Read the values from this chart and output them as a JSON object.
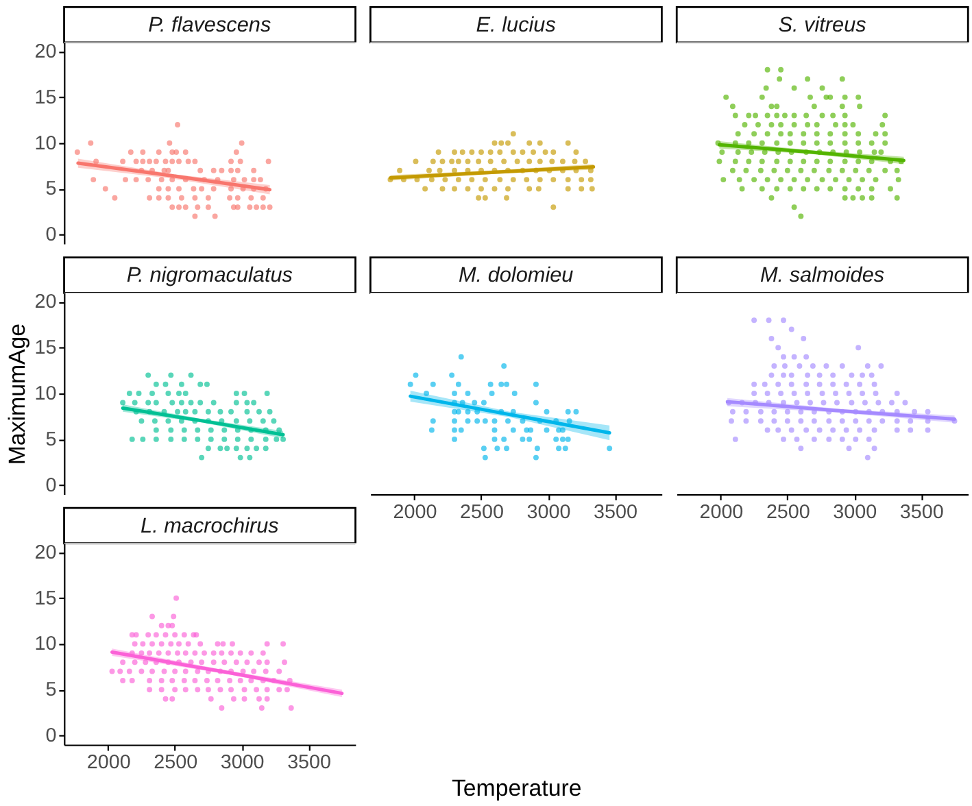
{
  "chart_data": [
    {
      "type": "scatter",
      "title": "P. flavescens",
      "xlim": [
        1670,
        3850
      ],
      "ylim": [
        -1,
        21
      ],
      "yticks": [
        0,
        5,
        10,
        15,
        20
      ],
      "tick_labels": "y",
      "series": [
        {
          "marker": "circle",
          "color": "#F8766D",
          "x": [
            2520,
            1870,
            2460,
            3000,
            1770,
            2170,
            2260,
            2380,
            2480,
            2510,
            2580,
            2960,
            1910,
            2110,
            2210,
            2260,
            2310,
            2360,
            2430,
            2480,
            2530,
            2600,
            2650,
            2920,
            2990,
            3200,
            2250,
            2330,
            2420,
            2450,
            2690,
            2790,
            2850,
            2920,
            2970,
            3090,
            1890,
            2130,
            2210,
            2300,
            2400,
            2480,
            2580,
            2720,
            2820,
            2940,
            3020,
            3090,
            3140,
            1980,
            2380,
            2450,
            2530,
            2640,
            2700,
            2790,
            2920,
            3010,
            3090,
            3180,
            2050,
            2310,
            2380,
            2450,
            2550,
            2650,
            2750,
            2910,
            2970,
            3070,
            3160,
            2480,
            2530,
            2580,
            2670,
            2750,
            2940,
            2970,
            3060,
            3110,
            3160,
            3210,
            2650,
            2800
          ],
          "values": [
            12,
            10,
            10,
            10,
            9,
            9,
            9,
            9,
            9,
            9,
            9,
            9,
            8,
            8,
            8,
            8,
            8,
            8,
            8,
            8,
            8,
            8,
            8,
            8,
            8,
            8,
            7,
            7,
            7,
            7,
            7,
            7,
            7,
            7,
            7,
            7,
            6,
            6,
            6,
            6,
            6,
            6,
            6,
            6,
            6,
            6,
            6,
            6,
            6,
            5,
            5,
            5,
            5,
            5,
            5,
            5,
            5,
            5,
            5,
            5,
            4,
            4,
            4,
            4,
            4,
            4,
            4,
            4,
            4,
            4,
            4,
            3,
            3,
            3,
            3,
            3,
            3,
            3,
            3,
            3,
            3,
            3,
            2,
            2
          ]
        },
        {
          "type": "line",
          "color": "#F8766D",
          "x": [
            1775,
            2490,
            3210
          ],
          "values": [
            7.8,
            6.4,
            4.9
          ],
          "lower": [
            7.3,
            6.1,
            4.4
          ],
          "upper": [
            8.3,
            6.6,
            5.4
          ]
        }
      ]
    },
    {
      "type": "scatter",
      "title": "E. lucius",
      "xlim": [
        1670,
        3850
      ],
      "ylim": [
        -1,
        21
      ],
      "tick_labels": false,
      "series": [
        {
          "marker": "circle",
          "color": "#C49A00",
          "x": [
            2740,
            2600,
            2650,
            2700,
            2860,
            2940,
            3150,
            2180,
            2300,
            2360,
            2430,
            2500,
            2570,
            2640,
            2740,
            2810,
            2890,
            2980,
            3040,
            3210,
            2010,
            2140,
            2210,
            2280,
            2330,
            2400,
            2480,
            2570,
            2670,
            2770,
            2860,
            2940,
            3030,
            3110,
            3200,
            3280,
            1890,
            2110,
            2190,
            2300,
            2400,
            2500,
            2600,
            2700,
            2810,
            2910,
            3010,
            3110,
            3210,
            3320,
            1820,
            1920,
            2020,
            2130,
            2230,
            2330,
            2430,
            2530,
            2640,
            2740,
            2840,
            2940,
            3040,
            3150,
            3250,
            3320,
            2080,
            2210,
            2300,
            2400,
            2500,
            2600,
            2700,
            2860,
            2930,
            3150,
            3250,
            3330,
            2480,
            2530,
            2690,
            3040
          ],
          "values": [
            11,
            10,
            10,
            10,
            10,
            10,
            10,
            9,
            9,
            9,
            9,
            9,
            9,
            9,
            9,
            9,
            9,
            9,
            9,
            9,
            8,
            8,
            8,
            8,
            8,
            8,
            8,
            8,
            8,
            8,
            8,
            8,
            8,
            8,
            8,
            8,
            7,
            7,
            7,
            7,
            7,
            7,
            7,
            7,
            7,
            7,
            7,
            7,
            7,
            7,
            6,
            6,
            6,
            6,
            6,
            6,
            6,
            6,
            6,
            6,
            6,
            6,
            6,
            6,
            6,
            6,
            5,
            5,
            5,
            5,
            5,
            5,
            5,
            5,
            5,
            5,
            5,
            5,
            4,
            4,
            4,
            3
          ]
        },
        {
          "type": "line",
          "color": "#C49A00",
          "x": [
            1820,
            2580,
            3340
          ],
          "values": [
            6.2,
            6.8,
            7.4
          ],
          "lower": [
            5.9,
            6.6,
            7.1
          ],
          "upper": [
            6.5,
            7.0,
            7.7
          ]
        }
      ]
    },
    {
      "type": "scatter",
      "title": "S. vitreus",
      "xlim": [
        1670,
        3850
      ],
      "ylim": [
        -1,
        21
      ],
      "tick_labels": false,
      "series": [
        {
          "marker": "circle",
          "color": "#53B400",
          "x": [
            2350,
            2450,
            2440,
            2650,
            2910,
            2340,
            2550,
            2760,
            2040,
            2310,
            2670,
            2790,
            2820,
            2930,
            3030,
            2090,
            2380,
            2420,
            2700,
            2910,
            3040,
            2110,
            2210,
            2260,
            2350,
            2420,
            2480,
            2550,
            2640,
            2760,
            2840,
            2930,
            3230,
            2180,
            2280,
            2380,
            2450,
            2550,
            2650,
            2720,
            2860,
            2930,
            2990,
            3210,
            2130,
            2250,
            2350,
            2450,
            2520,
            2620,
            2720,
            2820,
            2930,
            3030,
            3160,
            3230,
            1980,
            2110,
            2210,
            2310,
            2420,
            2520,
            2620,
            2720,
            2820,
            2930,
            3030,
            3130,
            3230,
            2010,
            2130,
            2230,
            2330,
            2430,
            2530,
            2640,
            2740,
            2840,
            2940,
            3040,
            3150,
            3200,
            1990,
            2110,
            2210,
            2310,
            2420,
            2520,
            2620,
            2720,
            2820,
            2930,
            3030,
            3130,
            3270,
            3350,
            2090,
            2190,
            2300,
            2400,
            2500,
            2600,
            2700,
            2810,
            2910,
            3010,
            3110,
            3230,
            3320,
            2020,
            2140,
            2250,
            2350,
            2450,
            2550,
            2650,
            2760,
            2860,
            2960,
            3060,
            3160,
            3330,
            2160,
            2310,
            2420,
            2520,
            2620,
            2720,
            2820,
            2930,
            3030,
            3130,
            3270,
            2380,
            2930,
            2990,
            3060,
            3130,
            3320,
            2550,
            2600
          ],
          "values": [
            18,
            18,
            17,
            17,
            17,
            16,
            16,
            16,
            15,
            15,
            15,
            15,
            15,
            15,
            15,
            14,
            14,
            14,
            14,
            14,
            14,
            13,
            13,
            13,
            13,
            13,
            13,
            13,
            13,
            13,
            13,
            13,
            13,
            12,
            12,
            12,
            12,
            12,
            12,
            12,
            12,
            12,
            12,
            12,
            11,
            11,
            11,
            11,
            11,
            11,
            11,
            11,
            11,
            11,
            11,
            11,
            10,
            10,
            10,
            10,
            10,
            10,
            10,
            10,
            10,
            10,
            10,
            10,
            10,
            9,
            9,
            9,
            9,
            9,
            9,
            9,
            9,
            9,
            9,
            9,
            9,
            9,
            8,
            8,
            8,
            8,
            8,
            8,
            8,
            8,
            8,
            8,
            8,
            8,
            8,
            8,
            7,
            7,
            7,
            7,
            7,
            7,
            7,
            7,
            7,
            7,
            7,
            7,
            7,
            6,
            6,
            6,
            6,
            6,
            6,
            6,
            6,
            6,
            6,
            6,
            6,
            6,
            5,
            5,
            5,
            5,
            5,
            5,
            5,
            5,
            5,
            5,
            5,
            4,
            4,
            4,
            4,
            4,
            4,
            3,
            2
          ]
        },
        {
          "type": "line",
          "color": "#53B400",
          "x": [
            1990,
            2680,
            3370
          ],
          "values": [
            9.8,
            9.0,
            8.1
          ],
          "lower": [
            9.4,
            8.8,
            7.7
          ],
          "upper": [
            10.2,
            9.2,
            8.5
          ]
        }
      ]
    },
    {
      "type": "scatter",
      "title": "P. nigromaculatus",
      "ylabel": "MaximumAge",
      "xlim": [
        1670,
        3850
      ],
      "ylim": [
        -1,
        21
      ],
      "yticks": [
        0,
        5,
        10,
        15,
        20
      ],
      "tick_labels": "y",
      "series": [
        {
          "marker": "circle",
          "color": "#00C094",
          "x": [
            2300,
            2470,
            2620,
            2360,
            2430,
            2550,
            2690,
            2740,
            2160,
            2230,
            2330,
            2450,
            2530,
            2580,
            2960,
            3020,
            3190,
            2110,
            2200,
            2300,
            2360,
            2480,
            2550,
            2620,
            2690,
            2790,
            2960,
            3040,
            3090,
            2210,
            2310,
            2420,
            2520,
            2580,
            2650,
            2750,
            2840,
            2920,
            3040,
            3130,
            3210,
            2250,
            2350,
            2450,
            2550,
            2650,
            2750,
            2850,
            2960,
            3060,
            3160,
            3240,
            2360,
            2470,
            2570,
            2670,
            2770,
            2870,
            2970,
            3070,
            3180,
            3280,
            2180,
            2260,
            2360,
            2470,
            2570,
            2670,
            2770,
            2870,
            2970,
            3070,
            3180,
            3260,
            3310,
            2750,
            2840,
            2890,
            2960,
            3040,
            3110,
            3180,
            2700,
            2990,
            3060
          ],
          "values": [
            12,
            12,
            12,
            11,
            11,
            11,
            11,
            11,
            10,
            10,
            10,
            10,
            10,
            10,
            10,
            10,
            10,
            9,
            9,
            9,
            9,
            9,
            9,
            9,
            9,
            9,
            9,
            9,
            9,
            8,
            8,
            8,
            8,
            8,
            8,
            8,
            8,
            8,
            8,
            8,
            8,
            7,
            7,
            7,
            7,
            7,
            7,
            7,
            7,
            7,
            7,
            7,
            6,
            6,
            6,
            6,
            6,
            6,
            6,
            6,
            6,
            6,
            5,
            5,
            5,
            5,
            5,
            5,
            5,
            5,
            5,
            5,
            5,
            5,
            5,
            4,
            4,
            4,
            4,
            4,
            4,
            4,
            3,
            3,
            3
          ]
        },
        {
          "type": "line",
          "color": "#00C094",
          "x": [
            2110,
            2710,
            3310
          ],
          "values": [
            8.4,
            7.0,
            5.5
          ],
          "lower": [
            8.0,
            6.8,
            5.1
          ],
          "upper": [
            8.8,
            7.2,
            5.9
          ]
        }
      ]
    },
    {
      "type": "scatter",
      "title": "M. dolomieu",
      "xlabel": "Temperature",
      "xlim": [
        1670,
        3850
      ],
      "xticks": [
        2000,
        2500,
        3000,
        3500
      ],
      "ylim": [
        -1,
        21
      ],
      "tick_labels": "x",
      "series": [
        {
          "marker": "circle",
          "color": "#00B6EB",
          "x": [
            2350,
            2670,
            2010,
            2280,
            1970,
            2140,
            2330,
            2570,
            2650,
            2690,
            2910,
            2090,
            2300,
            2400,
            2580,
            2750,
            2300,
            2360,
            2450,
            2520,
            2910,
            2300,
            2330,
            2400,
            2470,
            2650,
            2740,
            2990,
            3150,
            3210,
            2140,
            2300,
            2400,
            2470,
            2530,
            2600,
            2700,
            2810,
            2940,
            3060,
            3160,
            2130,
            2300,
            2350,
            2600,
            2740,
            2840,
            2870,
            2990,
            3080,
            3110,
            2300,
            2600,
            2670,
            2810,
            2860,
            3060,
            3110,
            3150,
            2520,
            2620,
            2690,
            2920,
            3080,
            3130,
            3460,
            2530,
            2910
          ],
          "values": [
            14,
            13,
            12,
            12,
            11,
            11,
            11,
            11,
            11,
            11,
            11,
            10,
            10,
            10,
            10,
            10,
            9,
            9,
            9,
            9,
            9,
            8,
            8,
            8,
            8,
            8,
            8,
            8,
            8,
            8,
            7,
            7,
            7,
            7,
            7,
            7,
            7,
            7,
            7,
            7,
            7,
            6,
            6,
            6,
            6,
            6,
            6,
            6,
            6,
            6,
            6,
            5,
            5,
            5,
            5,
            5,
            5,
            5,
            5,
            4,
            4,
            4,
            4,
            4,
            4,
            4,
            3,
            3
          ]
        },
        {
          "type": "line",
          "color": "#00B6EB",
          "x": [
            1970,
            2715,
            3460
          ],
          "values": [
            9.7,
            7.7,
            5.7
          ],
          "lower": [
            9.1,
            7.4,
            4.9
          ],
          "upper": [
            10.3,
            8.0,
            6.5
          ]
        }
      ]
    },
    {
      "type": "scatter",
      "title": "M. salmoides",
      "xlim": [
        1670,
        3850
      ],
      "xticks": [
        2000,
        2500,
        3000,
        3500
      ],
      "ylim": [
        -1,
        21
      ],
      "tick_labels": "x",
      "series": [
        {
          "marker": "circle",
          "color": "#A58AFF",
          "x": [
            2250,
            2360,
            2470,
            2530,
            2380,
            2620,
            2430,
            3030,
            2470,
            2550,
            2640,
            2400,
            2480,
            2590,
            2690,
            2790,
            2910,
            3100,
            3200,
            2380,
            2470,
            2530,
            2650,
            2740,
            2840,
            2980,
            3060,
            3130,
            2250,
            2330,
            2430,
            2530,
            2640,
            2740,
            2840,
            2940,
            3040,
            3150,
            2250,
            2350,
            2450,
            2550,
            2650,
            2760,
            2860,
            2960,
            3060,
            3160,
            3320,
            2060,
            2160,
            2260,
            2360,
            2470,
            2570,
            2670,
            2770,
            2870,
            2980,
            3080,
            3180,
            3280,
            3380,
            2090,
            2190,
            2300,
            2400,
            2500,
            2600,
            2700,
            2810,
            2910,
            3010,
            3110,
            3210,
            3320,
            3450,
            3550,
            2080,
            2190,
            2300,
            2400,
            2500,
            2600,
            2700,
            2810,
            2910,
            3010,
            3110,
            3210,
            3320,
            3420,
            3550,
            3750,
            2350,
            2430,
            2530,
            2640,
            2740,
            2840,
            2940,
            3040,
            3150,
            3320,
            3420,
            3550,
            2110,
            2470,
            2570,
            2700,
            2810,
            2910,
            3010,
            3110,
            2600,
            2960,
            3150,
            3100
          ],
          "values": [
            18,
            18,
            18,
            17,
            16,
            16,
            15,
            15,
            14,
            14,
            14,
            13,
            13,
            13,
            13,
            13,
            13,
            13,
            13,
            12,
            12,
            12,
            12,
            12,
            12,
            12,
            12,
            12,
            11,
            11,
            11,
            11,
            11,
            11,
            11,
            11,
            11,
            11,
            10,
            10,
            10,
            10,
            10,
            10,
            10,
            10,
            10,
            10,
            10,
            9,
            9,
            9,
            9,
            9,
            9,
            9,
            9,
            9,
            9,
            9,
            9,
            9,
            9,
            8,
            8,
            8,
            8,
            8,
            8,
            8,
            8,
            8,
            8,
            8,
            8,
            8,
            8,
            8,
            7,
            7,
            7,
            7,
            7,
            7,
            7,
            7,
            7,
            7,
            7,
            7,
            7,
            7,
            7,
            7,
            6,
            6,
            6,
            6,
            6,
            6,
            6,
            6,
            6,
            6,
            6,
            6,
            5,
            5,
            5,
            5,
            5,
            5,
            5,
            5,
            4,
            4,
            4,
            3
          ]
        },
        {
          "type": "line",
          "color": "#A58AFF",
          "x": [
            2050,
            2900,
            3750
          ],
          "values": [
            9.1,
            8.1,
            7.2
          ],
          "lower": [
            8.6,
            7.9,
            6.8
          ],
          "upper": [
            9.5,
            8.3,
            7.6
          ]
        }
      ]
    },
    {
      "type": "scatter",
      "title": "L. macrochirus",
      "xlim": [
        1670,
        3850
      ],
      "xticks": [
        2000,
        2500,
        3000,
        3500
      ],
      "ylim": [
        -1,
        21
      ],
      "yticks": [
        0,
        5,
        10,
        15,
        20
      ],
      "series": [
        {
          "marker": "circle",
          "color": "#FB61D7",
          "x": [
            2510,
            2330,
            2490,
            2400,
            2450,
            2480,
            2180,
            2210,
            2300,
            2360,
            2430,
            2500,
            2570,
            2640,
            2660,
            2200,
            2260,
            2330,
            2400,
            2470,
            2530,
            2600,
            2690,
            2820,
            2860,
            2930,
            3190,
            3310,
            2180,
            2250,
            2310,
            2380,
            2450,
            2520,
            2580,
            2650,
            2720,
            2790,
            2850,
            2920,
            2990,
            3070,
            3160,
            2110,
            2200,
            2280,
            2360,
            2450,
            2530,
            2620,
            2700,
            2790,
            2870,
            2960,
            3040,
            3130,
            3190,
            3320,
            2030,
            2090,
            2160,
            2250,
            2330,
            2420,
            2500,
            2580,
            2670,
            2750,
            2840,
            2920,
            3010,
            3090,
            3180,
            3280,
            2110,
            2180,
            2310,
            2400,
            2480,
            2570,
            2650,
            2740,
            2820,
            2910,
            2990,
            3070,
            3160,
            3240,
            3360,
            2310,
            2400,
            2500,
            2580,
            2670,
            2750,
            2840,
            2920,
            3020,
            3110,
            3190,
            3280,
            3340,
            2430,
            2480,
            2770,
            2940,
            3020,
            3130,
            3190,
            2850,
            3150,
            3370
          ],
          "values": [
            15,
            13,
            13,
            12,
            12,
            12,
            11,
            11,
            11,
            11,
            11,
            11,
            11,
            11,
            11,
            10,
            10,
            10,
            10,
            10,
            10,
            10,
            10,
            10,
            10,
            10,
            10,
            10,
            9,
            9,
            9,
            9,
            9,
            9,
            9,
            9,
            9,
            9,
            9,
            9,
            9,
            9,
            9,
            8,
            8,
            8,
            8,
            8,
            8,
            8,
            8,
            8,
            8,
            8,
            8,
            8,
            8,
            8,
            7,
            7,
            7,
            7,
            7,
            7,
            7,
            7,
            7,
            7,
            7,
            7,
            7,
            7,
            7,
            7,
            6,
            6,
            6,
            6,
            6,
            6,
            6,
            6,
            6,
            6,
            6,
            6,
            6,
            6,
            6,
            5,
            5,
            5,
            5,
            5,
            5,
            5,
            5,
            5,
            5,
            5,
            5,
            5,
            4,
            4,
            4,
            4,
            4,
            4,
            4,
            3,
            3,
            3
          ]
        },
        {
          "type": "line",
          "color": "#FB61D7",
          "x": [
            2030,
            2890,
            3750
          ],
          "values": [
            9.1,
            6.9,
            4.6
          ],
          "lower": [
            8.7,
            6.7,
            4.2
          ],
          "upper": [
            9.5,
            7.1,
            5.0
          ]
        }
      ]
    }
  ]
}
